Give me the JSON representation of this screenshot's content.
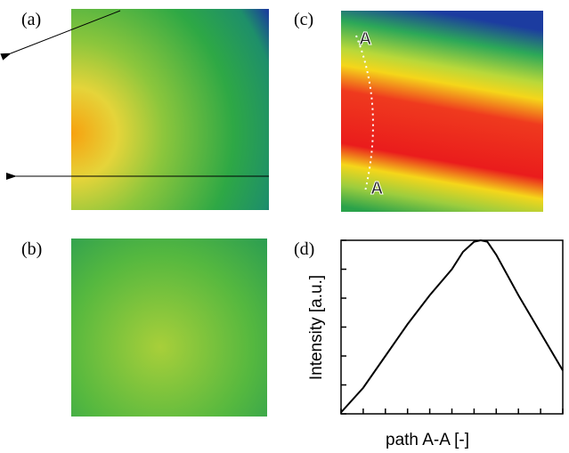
{
  "panels": {
    "a": "(a)",
    "b": "(b)",
    "c": "(c)",
    "d": "(d)"
  },
  "path_markers": {
    "start": "A",
    "end": "A"
  },
  "chart_data": {
    "type": "line",
    "xlabel": "path A-A [-]",
    "ylabel": "Intensity [a.u.]",
    "x": [
      0,
      1,
      2,
      3,
      4,
      5,
      5.5,
      6,
      6.3,
      6.6,
      7,
      8,
      9,
      10
    ],
    "values": [
      0.05,
      0.9,
      2.0,
      3.1,
      4.1,
      5.0,
      5.6,
      5.95,
      6.0,
      5.95,
      5.5,
      4.1,
      2.8,
      1.5
    ],
    "color": "#000000",
    "xlim": [
      0,
      10
    ],
    "ylim": [
      0,
      6
    ],
    "xticks": [
      0,
      1,
      2,
      3,
      4,
      5,
      6,
      7,
      8,
      9,
      10
    ],
    "yticks": [
      0,
      1,
      2,
      3,
      4,
      5,
      6
    ]
  }
}
